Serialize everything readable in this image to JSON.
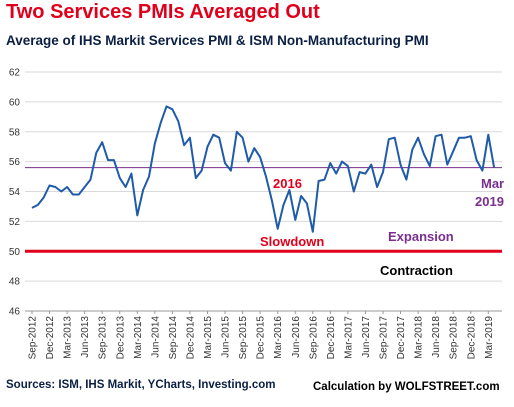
{
  "title": "Two Services PMIs Averaged Out",
  "subtitle": "Average of IHS Markit Services PMI & ISM Non-Manufacturing PMI",
  "footer": {
    "sources": "Sources: ISM, IHS Markit, YCharts, Investing.com",
    "credit": "Calculation by WOLFSTREET.com"
  },
  "colors": {
    "line": "#1f5ba8",
    "threshold": "#e0001b",
    "average": "#7a2e8e",
    "annotation_red": "#e0001b",
    "annotation_purple": "#7a2e8e"
  },
  "chart_data": {
    "type": "line",
    "series": [
      {
        "values": [
          52.9,
          53.1,
          53.6,
          54.4,
          54.3,
          54.0,
          54.3,
          53.8,
          53.8,
          54.3,
          54.8,
          56.6,
          57.3,
          56.1,
          56.1,
          54.9,
          54.3,
          55.2,
          52.4,
          54.1,
          55.0,
          57.2,
          58.6,
          59.7,
          59.5,
          58.7,
          57.1,
          57.6,
          54.9,
          55.4,
          57.0,
          57.8,
          57.6,
          55.9,
          55.4,
          58.0,
          57.6,
          56.0,
          56.9,
          56.3,
          55.0,
          53.4,
          51.5,
          53.1,
          54.1,
          52.1,
          53.7,
          53.2,
          51.3,
          54.7,
          54.8,
          55.9,
          55.2,
          56.0,
          55.7,
          54.0,
          55.3,
          55.2,
          55.8,
          54.3,
          55.3,
          57.5,
          57.6,
          55.8,
          54.8,
          56.8,
          57.6,
          56.5,
          55.7,
          57.7,
          57.8,
          55.8,
          56.7,
          57.6,
          57.6,
          57.7,
          56.1,
          55.4,
          57.8,
          55.6
        ]
      }
    ],
    "x_tick_labels": [
      "Sep-2012",
      "Dec-2012",
      "Mar-2013",
      "Jun-2013",
      "Sep-2013",
      "Dec-2013",
      "Mar-2014",
      "Jun-2014",
      "Sep-2014",
      "Dec-2014",
      "Mar-2015",
      "Jun-2015",
      "Sep-2015",
      "Dec-2015",
      "Mar-2016",
      "Jun-2016",
      "Sep-2016",
      "Dec-2016",
      "Mar-2017",
      "Jun-2017",
      "Sep-2017",
      "Dec-2017",
      "Mar-2018",
      "Jun-2018",
      "Sep-2018",
      "Dec-2018",
      "Mar-2019"
    ],
    "ylim": [
      46,
      62
    ],
    "y_ticks": [
      46,
      48,
      50,
      52,
      54,
      56,
      58,
      60,
      62
    ],
    "grid": "horizontal",
    "threshold": 50,
    "average_level": 55.6,
    "annotations": [
      {
        "text": "2016",
        "color": "red"
      },
      {
        "text": "Slowdown",
        "color": "red"
      },
      {
        "text": "Expansion",
        "color": "purple"
      },
      {
        "text": "Contraction",
        "color": "black"
      },
      {
        "text": "Mar",
        "color": "purple"
      },
      {
        "text": "2019",
        "color": "purple"
      }
    ]
  }
}
